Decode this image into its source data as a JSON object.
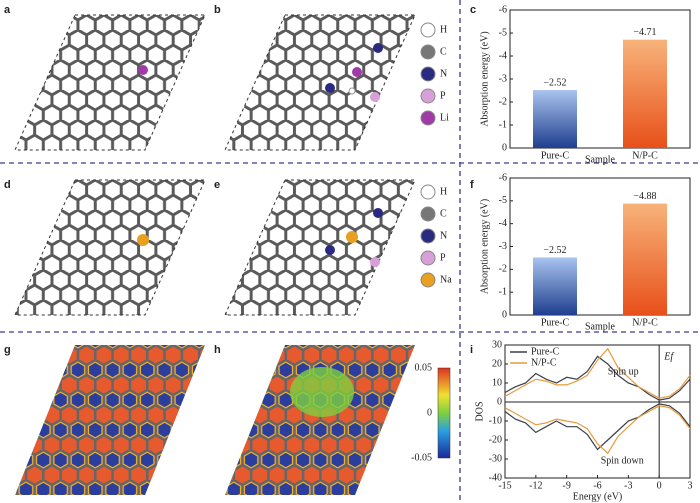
{
  "panel_labels": [
    "a",
    "b",
    "c",
    "d",
    "e",
    "f",
    "g",
    "h",
    "i"
  ],
  "atom_legends": [
    [
      "H",
      "C",
      "N",
      "P",
      "Li"
    ],
    [
      "H",
      "C",
      "N",
      "P",
      "Na"
    ]
  ],
  "colorbar_ticks": [
    0.05,
    0,
    -0.05
  ],
  "chart_data": [
    {
      "type": "bar",
      "ylabel": "Absorption energy (eV)",
      "xlabel": "Sample",
      "categories": [
        "Pure-C",
        "N/P-C"
      ],
      "values": [
        -2.52,
        -4.71
      ],
      "value_labels": [
        "−2.52",
        "−4.71"
      ],
      "colors": [
        "#4a7fd0",
        "#f07030"
      ],
      "ylim": [
        0,
        -6
      ],
      "yticks": [
        0,
        -1,
        -2,
        -3,
        -4,
        -5,
        -6
      ]
    },
    {
      "type": "bar",
      "ylabel": "Absorption energy (eV)",
      "xlabel": "Sample",
      "categories": [
        "Pure-C",
        "N/P-C"
      ],
      "values": [
        -2.52,
        -4.88
      ],
      "value_labels": [
        "−2.52",
        "−4.88"
      ],
      "colors": [
        "#4a7fd0",
        "#f07030"
      ],
      "ylim": [
        0,
        -6
      ],
      "yticks": [
        0,
        -1,
        -2,
        -3,
        -4,
        -5,
        -6
      ]
    },
    {
      "type": "line",
      "xlabel": "Energy (eV)",
      "ylabel": "DOS",
      "annotations": [
        "Spin up",
        "Spin down",
        "Ef"
      ],
      "x": [
        -15,
        -14,
        -13,
        -12,
        -11,
        -10,
        -9,
        -8,
        -7,
        -6,
        -5,
        -4,
        -3,
        -2,
        -1,
        0,
        1,
        2,
        3
      ],
      "series": [
        {
          "name": "Pure-C",
          "color": "#3a3f4a",
          "values": [
            5,
            8,
            10,
            15,
            12,
            10,
            13,
            12,
            16,
            24,
            20,
            14,
            10,
            8,
            4,
            1,
            2,
            6,
            12
          ],
          "down": [
            -5,
            -9,
            -11,
            -16,
            -13,
            -10,
            -13,
            -13,
            -17,
            -25,
            -20,
            -15,
            -10,
            -8,
            -4,
            -1,
            -2,
            -6,
            -13
          ]
        },
        {
          "name": "N/P-C",
          "color": "#e89a3a",
          "values": [
            3,
            6,
            9,
            12,
            11,
            9,
            9,
            11,
            14,
            22,
            28,
            18,
            13,
            8,
            5,
            2,
            3,
            7,
            14
          ],
          "down": [
            -3,
            -6,
            -9,
            -12,
            -11,
            -9,
            -10,
            -11,
            -14,
            -22,
            -27,
            -18,
            -13,
            -8,
            -5,
            -2,
            -3,
            -7,
            -14
          ]
        }
      ],
      "xlim": [
        -15,
        3
      ],
      "xticks": [
        -15,
        -12,
        -9,
        -6,
        -3,
        0,
        3
      ],
      "ylim": [
        -40,
        30
      ],
      "yticks": [
        -40,
        -30,
        -20,
        -10,
        0,
        10,
        20,
        30
      ]
    }
  ]
}
